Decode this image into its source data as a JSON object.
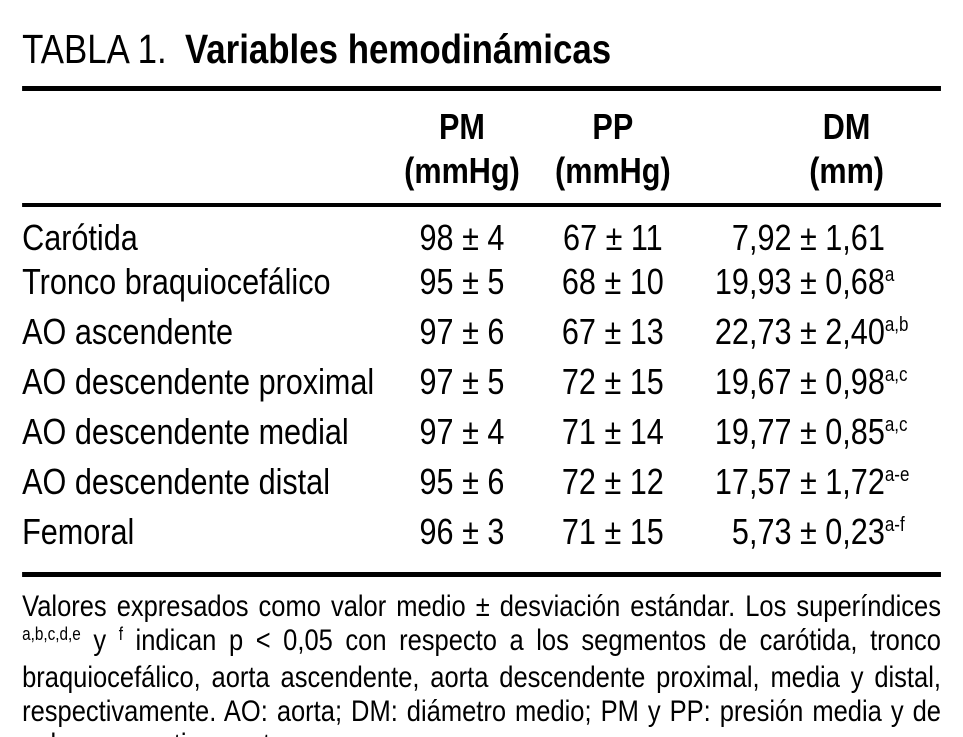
{
  "title": {
    "label": "TABLA 1.",
    "subtitle": "Variables hemodinámicas"
  },
  "table": {
    "columns": [
      {
        "abbr": "PM",
        "unit": "(mmHg)"
      },
      {
        "abbr": "PP",
        "unit": "(mmHg)"
      },
      {
        "abbr": "DM",
        "unit": "(mm)"
      }
    ],
    "rows": [
      {
        "label": "Carótida",
        "pm": "98 ± 4",
        "pp": "67 ± 11",
        "dm": "7,92 ± 1,61",
        "dm_sup": ""
      },
      {
        "label": "Tronco braquiocefálico",
        "pm": "95 ± 5",
        "pp": "68 ± 10",
        "dm": "19,93 ± 0,68",
        "dm_sup": "a"
      },
      {
        "label": "AO ascendente",
        "pm": "97 ± 6",
        "pp": "67 ± 13",
        "dm": "22,73 ± 2,40",
        "dm_sup": "a,b"
      },
      {
        "label": "AO descendente proximal",
        "pm": "97 ± 5",
        "pp": "72 ± 15",
        "dm": "19,67 ± 0,98",
        "dm_sup": "a,c"
      },
      {
        "label": "AO descendente medial",
        "pm": "97 ± 4",
        "pp": "71 ± 14",
        "dm": "19,77 ± 0,85",
        "dm_sup": "a,c"
      },
      {
        "label": "AO descendente distal",
        "pm": "95 ± 6",
        "pp": "72 ± 12",
        "dm": "17,57 ± 1,72",
        "dm_sup": "a-e"
      },
      {
        "label": "Femoral",
        "pm": "96 ± 3",
        "pp": "71 ± 15",
        "dm": "5,73 ± 0,23",
        "dm_sup": "a-f"
      }
    ]
  },
  "footnote": {
    "before": "Valores expresados como valor medio ± desviación estándar. Los superíndices ",
    "sup1": "a,b,c,d,e",
    "between": " y ",
    "sup2": "f",
    "after": " indican p < 0,05 con respecto a los segmentos de carótida, tronco braquiocefálico, aorta ascendente, aorta descendente proximal, media y distal, respectivamente. AO: aorta; DM: diámetro medio; PM y PP: presión media y de pulso, respectivamente."
  }
}
